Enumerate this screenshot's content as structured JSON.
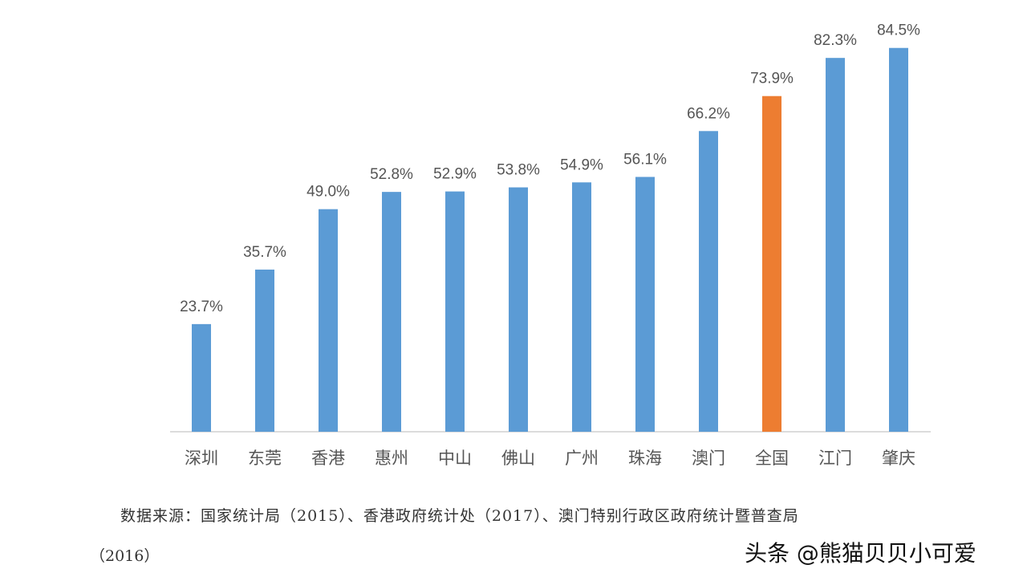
{
  "chart_data": {
    "type": "bar",
    "categories": [
      "深圳",
      "东莞",
      "香港",
      "惠州",
      "中山",
      "佛山",
      "广州",
      "珠海",
      "澳门",
      "全国",
      "江门",
      "肇庆"
    ],
    "values": [
      23.7,
      35.7,
      49.0,
      52.8,
      52.9,
      53.8,
      54.9,
      56.1,
      66.2,
      73.9,
      82.3,
      84.5
    ],
    "data_labels": [
      "23.7%",
      "35.7%",
      "49.0%",
      "52.8%",
      "52.9%",
      "53.8%",
      "54.9%",
      "56.1%",
      "66.2%",
      "73.9%",
      "82.3%",
      "84.5%"
    ],
    "highlight_category": "全国",
    "colors": {
      "default": "#5b9bd5",
      "highlight": "#ed7d31"
    },
    "title": "",
    "xlabel": "",
    "ylabel": "",
    "ylim": [
      0,
      100
    ],
    "grid": false,
    "legend": "none"
  },
  "source_line1": "数据来源：国家统计局（2015）、香港政府统计处（2017）、澳门特别行政区政府统计暨普查局",
  "source_line2": "（2016）",
  "watermark": "头条 @熊猫贝贝小可爱"
}
